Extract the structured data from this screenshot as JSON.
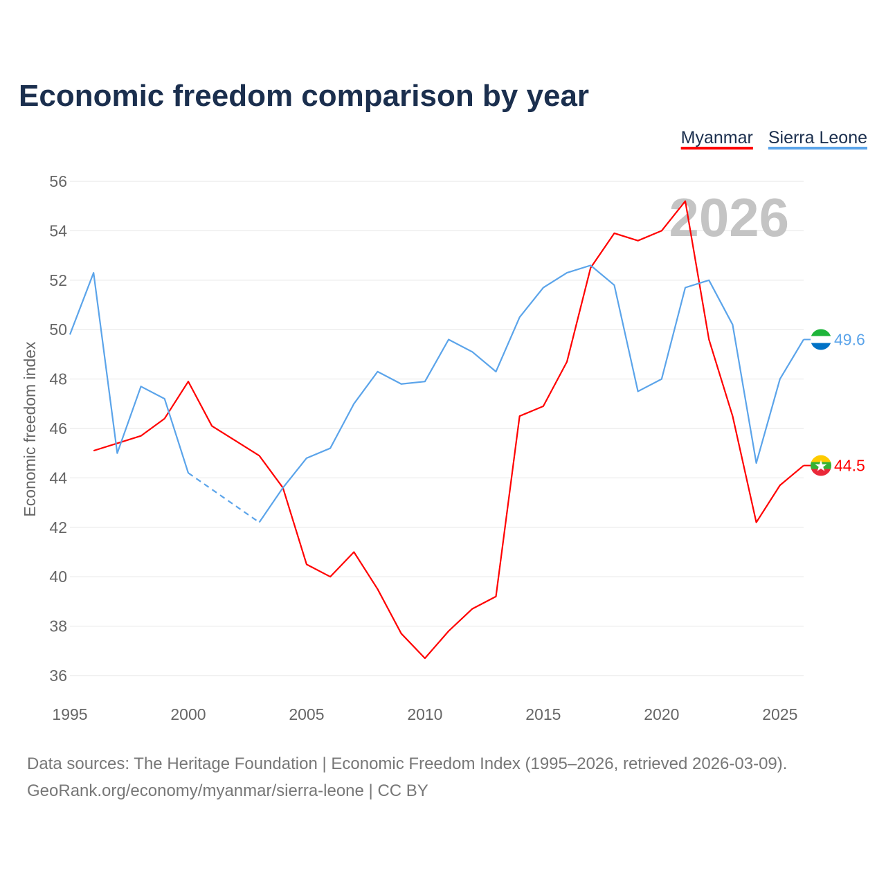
{
  "chart_data": {
    "type": "line",
    "title": "Economic freedom comparison by year",
    "ylabel": "Economic freedom index",
    "xlabel": "",
    "xlim": [
      1995,
      2026
    ],
    "ylim": [
      36,
      56
    ],
    "yticks": [
      36,
      38,
      40,
      42,
      44,
      46,
      48,
      50,
      52,
      54,
      56
    ],
    "xticks": [
      1995,
      2000,
      2005,
      2010,
      2015,
      2020,
      2025
    ],
    "grid": true,
    "legend_placement": "top-right",
    "watermark_year": "2026",
    "series": [
      {
        "name": "Myanmar",
        "color": "#ff0000",
        "end_label": "44.5",
        "x": [
          1996,
          1997,
          1998,
          1999,
          2000,
          2001,
          2002,
          2003,
          2004,
          2005,
          2006,
          2007,
          2008,
          2009,
          2010,
          2011,
          2012,
          2013,
          2014,
          2015,
          2016,
          2017,
          2018,
          2019,
          2020,
          2021,
          2022,
          2023,
          2024,
          2025,
          2026
        ],
        "values": [
          45.1,
          45.4,
          45.7,
          46.4,
          47.9,
          46.1,
          45.5,
          44.9,
          43.6,
          40.5,
          40.0,
          41.0,
          39.5,
          37.7,
          36.7,
          37.8,
          38.7,
          39.2,
          46.5,
          46.9,
          48.7,
          52.5,
          53.9,
          53.6,
          54.0,
          55.2,
          49.6,
          46.5,
          42.2,
          43.7,
          44.5
        ]
      },
      {
        "name": "Sierra Leone",
        "color": "#5ba4ea",
        "end_label": "49.6",
        "x": [
          1995,
          1996,
          1997,
          1998,
          1999,
          2000,
          2003,
          2004,
          2005,
          2006,
          2007,
          2008,
          2009,
          2010,
          2011,
          2012,
          2013,
          2014,
          2015,
          2016,
          2017,
          2018,
          2019,
          2020,
          2021,
          2022,
          2023,
          2024,
          2025,
          2026
        ],
        "values": [
          49.8,
          52.3,
          45.0,
          47.7,
          47.2,
          44.2,
          42.2,
          43.6,
          44.8,
          45.2,
          47.0,
          48.3,
          47.8,
          47.9,
          49.6,
          49.1,
          48.3,
          50.5,
          51.7,
          52.3,
          52.6,
          51.8,
          47.5,
          48.0,
          51.7,
          52.0,
          50.2,
          44.6,
          48.0,
          49.6
        ],
        "gap_after": 2000
      }
    ]
  },
  "footer": {
    "line1": "Data sources: The Heritage Foundation | Economic Freedom Index (1995–2026, retrieved 2026-03-09).",
    "line2": "GeoRank.org/economy/myanmar/sierra-leone | CC BY"
  }
}
